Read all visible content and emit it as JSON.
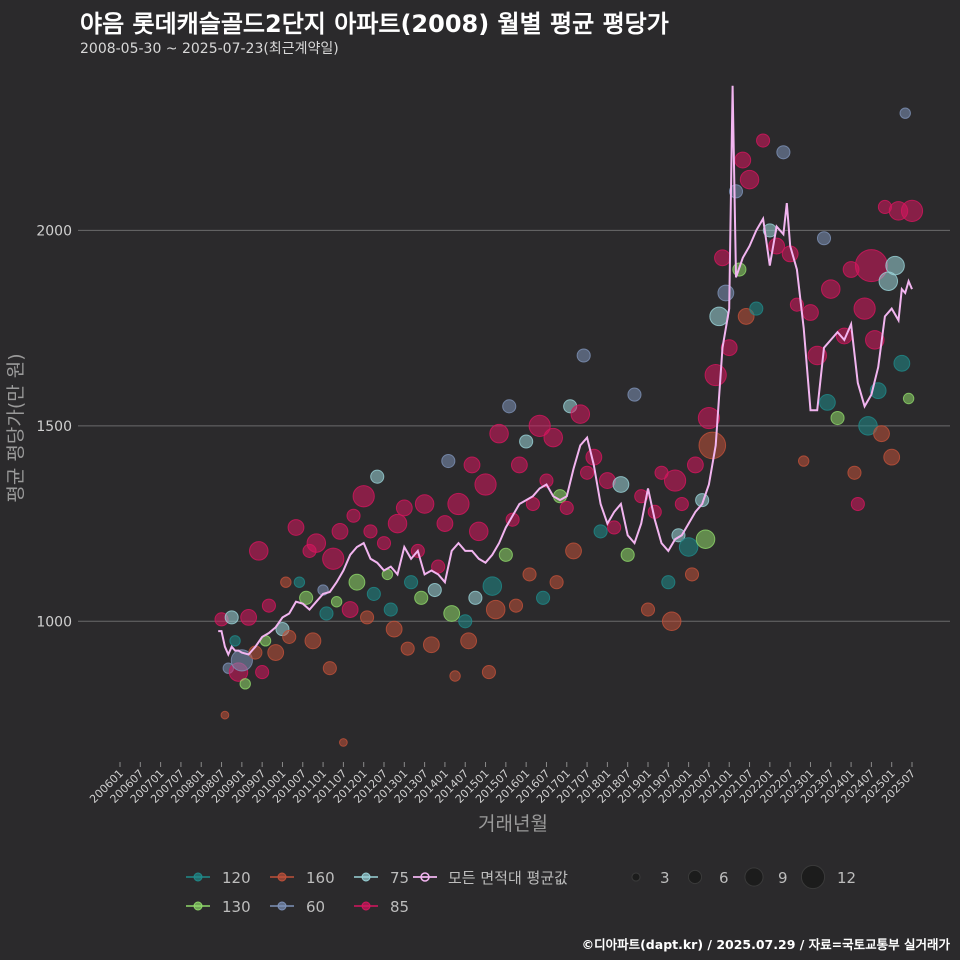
{
  "header": {
    "title": "야음 롯데캐슬골드2단지 아파트(2008) 월별 평균 평당가",
    "subtitle": "2008-05-30 ~ 2025-07-23(최근계약일)"
  },
  "caption": "©디아파트(dapt.kr) / 2025.07.29 / 자료=국토교통부 실거래가",
  "chart_data": {
    "type": "scatter",
    "xlabel": "거래년월",
    "ylabel": "평균 평당가(만 원)",
    "ylim": [
      640,
      2390
    ],
    "yticks": [
      1000,
      1500,
      2000
    ],
    "xlim": [
      "2006-01",
      "2025-07"
    ],
    "xticks": [
      "200601",
      "200607",
      "200701",
      "200707",
      "200801",
      "200807",
      "200901",
      "200907",
      "201001",
      "201007",
      "201101",
      "201107",
      "201201",
      "201207",
      "201301",
      "201307",
      "201401",
      "201407",
      "201501",
      "201507",
      "201601",
      "201607",
      "201701",
      "201707",
      "201801",
      "201807",
      "201901",
      "201907",
      "202001",
      "202007",
      "202101",
      "202107",
      "202201",
      "202207",
      "202301",
      "202307",
      "202401",
      "202407",
      "202501",
      "202507"
    ],
    "grid": true,
    "legend_placement": "bottom",
    "area_legend": [
      {
        "name": "120",
        "color": "#1f8a8a"
      },
      {
        "name": "160",
        "color": "#c0513a"
      },
      {
        "name": "75",
        "color": "#9ad3d8"
      },
      {
        "name": "130",
        "color": "#8fd86a"
      },
      {
        "name": "60",
        "color": "#7e92b8"
      },
      {
        "name": "85",
        "color": "#d6155e"
      }
    ],
    "avg_line": {
      "name": "모든 면적대 평균값",
      "color": "#f2b5f0",
      "points": [
        [
          "2008-06",
          975
        ],
        [
          "2008-07",
          975
        ],
        [
          "2008-08",
          935
        ],
        [
          "2008-09",
          915
        ],
        [
          "2008-10",
          935
        ],
        [
          "2008-11",
          925
        ],
        [
          "2008-12",
          925
        ],
        [
          "2009-01",
          920
        ],
        [
          "2009-03",
          915
        ],
        [
          "2009-05",
          935
        ],
        [
          "2009-07",
          960
        ],
        [
          "2009-09",
          970
        ],
        [
          "2009-11",
          985
        ],
        [
          "2010-01",
          1010
        ],
        [
          "2010-03",
          1020
        ],
        [
          "2010-05",
          1050
        ],
        [
          "2010-07",
          1045
        ],
        [
          "2010-09",
          1030
        ],
        [
          "2010-11",
          1050
        ],
        [
          "2011-01",
          1070
        ],
        [
          "2011-03",
          1075
        ],
        [
          "2011-05",
          1100
        ],
        [
          "2011-07",
          1130
        ],
        [
          "2011-09",
          1170
        ],
        [
          "2011-11",
          1190
        ],
        [
          "2012-01",
          1200
        ],
        [
          "2012-03",
          1160
        ],
        [
          "2012-05",
          1150
        ],
        [
          "2012-07",
          1130
        ],
        [
          "2012-09",
          1140
        ],
        [
          "2012-11",
          1120
        ],
        [
          "2013-01",
          1190
        ],
        [
          "2013-03",
          1160
        ],
        [
          "2013-05",
          1180
        ],
        [
          "2013-07",
          1120
        ],
        [
          "2013-09",
          1130
        ],
        [
          "2013-11",
          1120
        ],
        [
          "2014-01",
          1100
        ],
        [
          "2014-03",
          1180
        ],
        [
          "2014-05",
          1200
        ],
        [
          "2014-07",
          1180
        ],
        [
          "2014-09",
          1180
        ],
        [
          "2014-11",
          1160
        ],
        [
          "2015-01",
          1150
        ],
        [
          "2015-03",
          1170
        ],
        [
          "2015-05",
          1200
        ],
        [
          "2015-07",
          1240
        ],
        [
          "2015-09",
          1270
        ],
        [
          "2015-11",
          1300
        ],
        [
          "2016-01",
          1310
        ],
        [
          "2016-03",
          1320
        ],
        [
          "2016-05",
          1340
        ],
        [
          "2016-07",
          1350
        ],
        [
          "2016-09",
          1320
        ],
        [
          "2016-11",
          1310
        ],
        [
          "2017-01",
          1320
        ],
        [
          "2017-03",
          1390
        ],
        [
          "2017-05",
          1450
        ],
        [
          "2017-07",
          1470
        ],
        [
          "2017-09",
          1400
        ],
        [
          "2017-11",
          1300
        ],
        [
          "2018-01",
          1250
        ],
        [
          "2018-03",
          1280
        ],
        [
          "2018-05",
          1300
        ],
        [
          "2018-07",
          1220
        ],
        [
          "2018-09",
          1200
        ],
        [
          "2018-11",
          1250
        ],
        [
          "2019-01",
          1340
        ],
        [
          "2019-03",
          1260
        ],
        [
          "2019-05",
          1200
        ],
        [
          "2019-07",
          1180
        ],
        [
          "2019-09",
          1210
        ],
        [
          "2019-11",
          1220
        ],
        [
          "2020-01",
          1250
        ],
        [
          "2020-03",
          1280
        ],
        [
          "2020-05",
          1300
        ],
        [
          "2020-07",
          1350
        ],
        [
          "2020-09",
          1450
        ],
        [
          "2020-11",
          1700
        ],
        [
          "2021-01",
          1800
        ],
        [
          "2021-02",
          2370
        ],
        [
          "2021-03",
          1880
        ],
        [
          "2021-05",
          1930
        ],
        [
          "2021-07",
          1960
        ],
        [
          "2021-09",
          2000
        ],
        [
          "2021-11",
          2030
        ],
        [
          "2022-01",
          1910
        ],
        [
          "2022-03",
          2010
        ],
        [
          "2022-05",
          1990
        ],
        [
          "2022-06",
          2070
        ],
        [
          "2022-07",
          1960
        ],
        [
          "2022-09",
          1900
        ],
        [
          "2022-11",
          1750
        ],
        [
          "2023-01",
          1540
        ],
        [
          "2023-03",
          1540
        ],
        [
          "2023-05",
          1700
        ],
        [
          "2023-07",
          1720
        ],
        [
          "2023-09",
          1740
        ],
        [
          "2023-11",
          1720
        ],
        [
          "2024-01",
          1760
        ],
        [
          "2024-03",
          1610
        ],
        [
          "2024-05",
          1550
        ],
        [
          "2024-07",
          1580
        ],
        [
          "2024-09",
          1650
        ],
        [
          "2024-11",
          1780
        ],
        [
          "2025-01",
          1800
        ],
        [
          "2025-03",
          1770
        ],
        [
          "2025-04",
          1850
        ],
        [
          "2025-05",
          1840
        ],
        [
          "2025-06",
          1870
        ],
        [
          "2025-07",
          1850
        ]
      ]
    },
    "size_legend": [
      3,
      6,
      9,
      12
    ],
    "points": [
      [
        "2008-07",
        1005,
        "85",
        3
      ],
      [
        "2008-08",
        760,
        "160",
        1
      ],
      [
        "2008-09",
        880,
        "60",
        2
      ],
      [
        "2008-10",
        1010,
        "75",
        3
      ],
      [
        "2008-11",
        950,
        "120",
        2
      ],
      [
        "2008-12",
        870,
        "85",
        5
      ],
      [
        "2009-01",
        900,
        "60",
        6
      ],
      [
        "2009-02",
        840,
        "130",
        2
      ],
      [
        "2009-03",
        1010,
        "85",
        4
      ],
      [
        "2009-05",
        920,
        "160",
        3
      ],
      [
        "2009-06",
        1180,
        "85",
        5
      ],
      [
        "2009-07",
        870,
        "85",
        3
      ],
      [
        "2009-08",
        950,
        "130",
        2
      ],
      [
        "2009-09",
        1040,
        "85",
        3
      ],
      [
        "2009-11",
        920,
        "160",
        4
      ],
      [
        "2010-01",
        980,
        "75",
        3
      ],
      [
        "2010-02",
        1100,
        "160",
        2
      ],
      [
        "2010-03",
        960,
        "160",
        3
      ],
      [
        "2010-05",
        1240,
        "85",
        4
      ],
      [
        "2010-06",
        1100,
        "120",
        2
      ],
      [
        "2010-08",
        1060,
        "130",
        3
      ],
      [
        "2010-09",
        1180,
        "85",
        3
      ],
      [
        "2010-10",
        950,
        "160",
        4
      ],
      [
        "2010-11",
        1200,
        "85",
        5
      ],
      [
        "2011-01",
        1080,
        "60",
        2
      ],
      [
        "2011-02",
        1020,
        "120",
        3
      ],
      [
        "2011-03",
        880,
        "160",
        3
      ],
      [
        "2011-04",
        1160,
        "85",
        6
      ],
      [
        "2011-05",
        1050,
        "130",
        2
      ],
      [
        "2011-06",
        1230,
        "85",
        4
      ],
      [
        "2011-07",
        690,
        "160",
        1
      ],
      [
        "2011-09",
        1030,
        "85",
        4
      ],
      [
        "2011-10",
        1270,
        "85",
        3
      ],
      [
        "2011-11",
        1100,
        "130",
        4
      ],
      [
        "2012-01",
        1320,
        "85",
        6
      ],
      [
        "2012-02",
        1010,
        "160",
        3
      ],
      [
        "2012-03",
        1230,
        "85",
        3
      ],
      [
        "2012-04",
        1070,
        "120",
        3
      ],
      [
        "2012-05",
        1370,
        "75",
        3
      ],
      [
        "2012-07",
        1200,
        "85",
        3
      ],
      [
        "2012-08",
        1120,
        "130",
        2
      ],
      [
        "2012-09",
        1030,
        "120",
        3
      ],
      [
        "2012-10",
        980,
        "160",
        4
      ],
      [
        "2012-11",
        1250,
        "85",
        5
      ],
      [
        "2013-01",
        1290,
        "85",
        4
      ],
      [
        "2013-02",
        930,
        "160",
        3
      ],
      [
        "2013-03",
        1100,
        "120",
        3
      ],
      [
        "2013-05",
        1180,
        "85",
        3
      ],
      [
        "2013-06",
        1060,
        "130",
        3
      ],
      [
        "2013-07",
        1300,
        "85",
        5
      ],
      [
        "2013-09",
        940,
        "160",
        4
      ],
      [
        "2013-10",
        1080,
        "75",
        3
      ],
      [
        "2013-11",
        1140,
        "85",
        3
      ],
      [
        "2014-01",
        1250,
        "85",
        4
      ],
      [
        "2014-02",
        1410,
        "60",
        3
      ],
      [
        "2014-03",
        1020,
        "130",
        4
      ],
      [
        "2014-04",
        860,
        "160",
        2
      ],
      [
        "2014-05",
        1300,
        "85",
        6
      ],
      [
        "2014-07",
        1000,
        "120",
        3
      ],
      [
        "2014-08",
        950,
        "160",
        4
      ],
      [
        "2014-09",
        1400,
        "85",
        4
      ],
      [
        "2014-10",
        1060,
        "75",
        3
      ],
      [
        "2014-11",
        1230,
        "85",
        5
      ],
      [
        "2015-01",
        1350,
        "85",
        6
      ],
      [
        "2015-02",
        870,
        "160",
        3
      ],
      [
        "2015-03",
        1090,
        "120",
        5
      ],
      [
        "2015-04",
        1030,
        "160",
        5
      ],
      [
        "2015-05",
        1480,
        "85",
        5
      ],
      [
        "2015-07",
        1170,
        "130",
        3
      ],
      [
        "2015-08",
        1550,
        "60",
        3
      ],
      [
        "2015-09",
        1260,
        "85",
        3
      ],
      [
        "2015-10",
        1040,
        "160",
        3
      ],
      [
        "2015-11",
        1400,
        "85",
        4
      ],
      [
        "2016-01",
        1460,
        "75",
        3
      ],
      [
        "2016-02",
        1120,
        "160",
        3
      ],
      [
        "2016-03",
        1300,
        "85",
        3
      ],
      [
        "2016-05",
        1500,
        "85",
        6
      ],
      [
        "2016-06",
        1060,
        "120",
        3
      ],
      [
        "2016-07",
        1360,
        "85",
        3
      ],
      [
        "2016-09",
        1470,
        "85",
        5
      ],
      [
        "2016-10",
        1100,
        "160",
        3
      ],
      [
        "2016-11",
        1320,
        "130",
        3
      ],
      [
        "2017-01",
        1290,
        "85",
        3
      ],
      [
        "2017-02",
        1550,
        "75",
        3
      ],
      [
        "2017-03",
        1180,
        "160",
        4
      ],
      [
        "2017-05",
        1530,
        "85",
        5
      ],
      [
        "2017-06",
        1680,
        "60",
        3
      ],
      [
        "2017-07",
        1380,
        "85",
        3
      ],
      [
        "2017-09",
        1420,
        "85",
        4
      ],
      [
        "2017-11",
        1230,
        "120",
        3
      ],
      [
        "2018-01",
        1360,
        "85",
        4
      ],
      [
        "2018-03",
        1240,
        "85",
        3
      ],
      [
        "2018-05",
        1350,
        "75",
        4
      ],
      [
        "2018-07",
        1170,
        "130",
        3
      ],
      [
        "2018-09",
        1580,
        "60",
        3
      ],
      [
        "2018-11",
        1320,
        "85",
        3
      ],
      [
        "2019-01",
        1030,
        "160",
        3
      ],
      [
        "2019-03",
        1280,
        "85",
        3
      ],
      [
        "2019-05",
        1380,
        "85",
        3
      ],
      [
        "2019-07",
        1100,
        "120",
        3
      ],
      [
        "2019-08",
        1000,
        "160",
        5
      ],
      [
        "2019-09",
        1360,
        "85",
        6
      ],
      [
        "2019-10",
        1220,
        "75",
        3
      ],
      [
        "2019-11",
        1300,
        "85",
        3
      ],
      [
        "2020-01",
        1190,
        "120",
        5
      ],
      [
        "2020-02",
        1120,
        "160",
        3
      ],
      [
        "2020-03",
        1400,
        "85",
        4
      ],
      [
        "2020-05",
        1310,
        "75",
        3
      ],
      [
        "2020-06",
        1210,
        "130",
        5
      ],
      [
        "2020-07",
        1520,
        "85",
        6
      ],
      [
        "2020-08",
        1450,
        "160",
        8
      ],
      [
        "2020-09",
        1630,
        "85",
        6
      ],
      [
        "2020-10",
        1780,
        "75",
        5
      ],
      [
        "2020-11",
        1930,
        "85",
        4
      ],
      [
        "2020-12",
        1840,
        "60",
        4
      ],
      [
        "2021-01",
        1700,
        "85",
        4
      ],
      [
        "2021-03",
        2100,
        "60",
        3
      ],
      [
        "2021-04",
        1900,
        "130",
        3
      ],
      [
        "2021-05",
        2180,
        "85",
        4
      ],
      [
        "2021-06",
        1780,
        "160",
        4
      ],
      [
        "2021-07",
        2130,
        "85",
        5
      ],
      [
        "2021-09",
        1800,
        "120",
        3
      ],
      [
        "2021-11",
        2230,
        "85",
        3
      ],
      [
        "2022-01",
        2000,
        "75",
        3
      ],
      [
        "2022-03",
        1960,
        "85",
        4
      ],
      [
        "2022-05",
        2200,
        "60",
        3
      ],
      [
        "2022-07",
        1940,
        "85",
        4
      ],
      [
        "2022-09",
        1810,
        "85",
        3
      ],
      [
        "2022-11",
        1410,
        "160",
        2
      ],
      [
        "2023-01",
        1790,
        "85",
        4
      ],
      [
        "2023-03",
        1680,
        "85",
        5
      ],
      [
        "2023-05",
        1980,
        "60",
        3
      ],
      [
        "2023-06",
        1560,
        "120",
        4
      ],
      [
        "2023-07",
        1850,
        "85",
        5
      ],
      [
        "2023-09",
        1520,
        "130",
        3
      ],
      [
        "2023-11",
        1730,
        "85",
        4
      ],
      [
        "2024-01",
        1900,
        "85",
        4
      ],
      [
        "2024-02",
        1380,
        "160",
        3
      ],
      [
        "2024-03",
        1300,
        "85",
        3
      ],
      [
        "2024-05",
        1800,
        "85",
        6
      ],
      [
        "2024-06",
        1500,
        "120",
        5
      ],
      [
        "2024-07",
        1910,
        "85",
        10
      ],
      [
        "2024-08",
        1720,
        "85",
        5
      ],
      [
        "2024-09",
        1590,
        "120",
        4
      ],
      [
        "2024-10",
        1480,
        "160",
        4
      ],
      [
        "2024-11",
        2060,
        "85",
        3
      ],
      [
        "2024-12",
        1870,
        "75",
        5
      ],
      [
        "2025-01",
        1420,
        "160",
        4
      ],
      [
        "2025-02",
        1910,
        "75",
        5
      ],
      [
        "2025-03",
        2050,
        "85",
        5
      ],
      [
        "2025-04",
        1660,
        "120",
        4
      ],
      [
        "2025-05",
        2300,
        "60",
        2
      ],
      [
        "2025-06",
        1570,
        "130",
        2
      ],
      [
        "2025-07",
        2050,
        "85",
        6
      ]
    ]
  }
}
